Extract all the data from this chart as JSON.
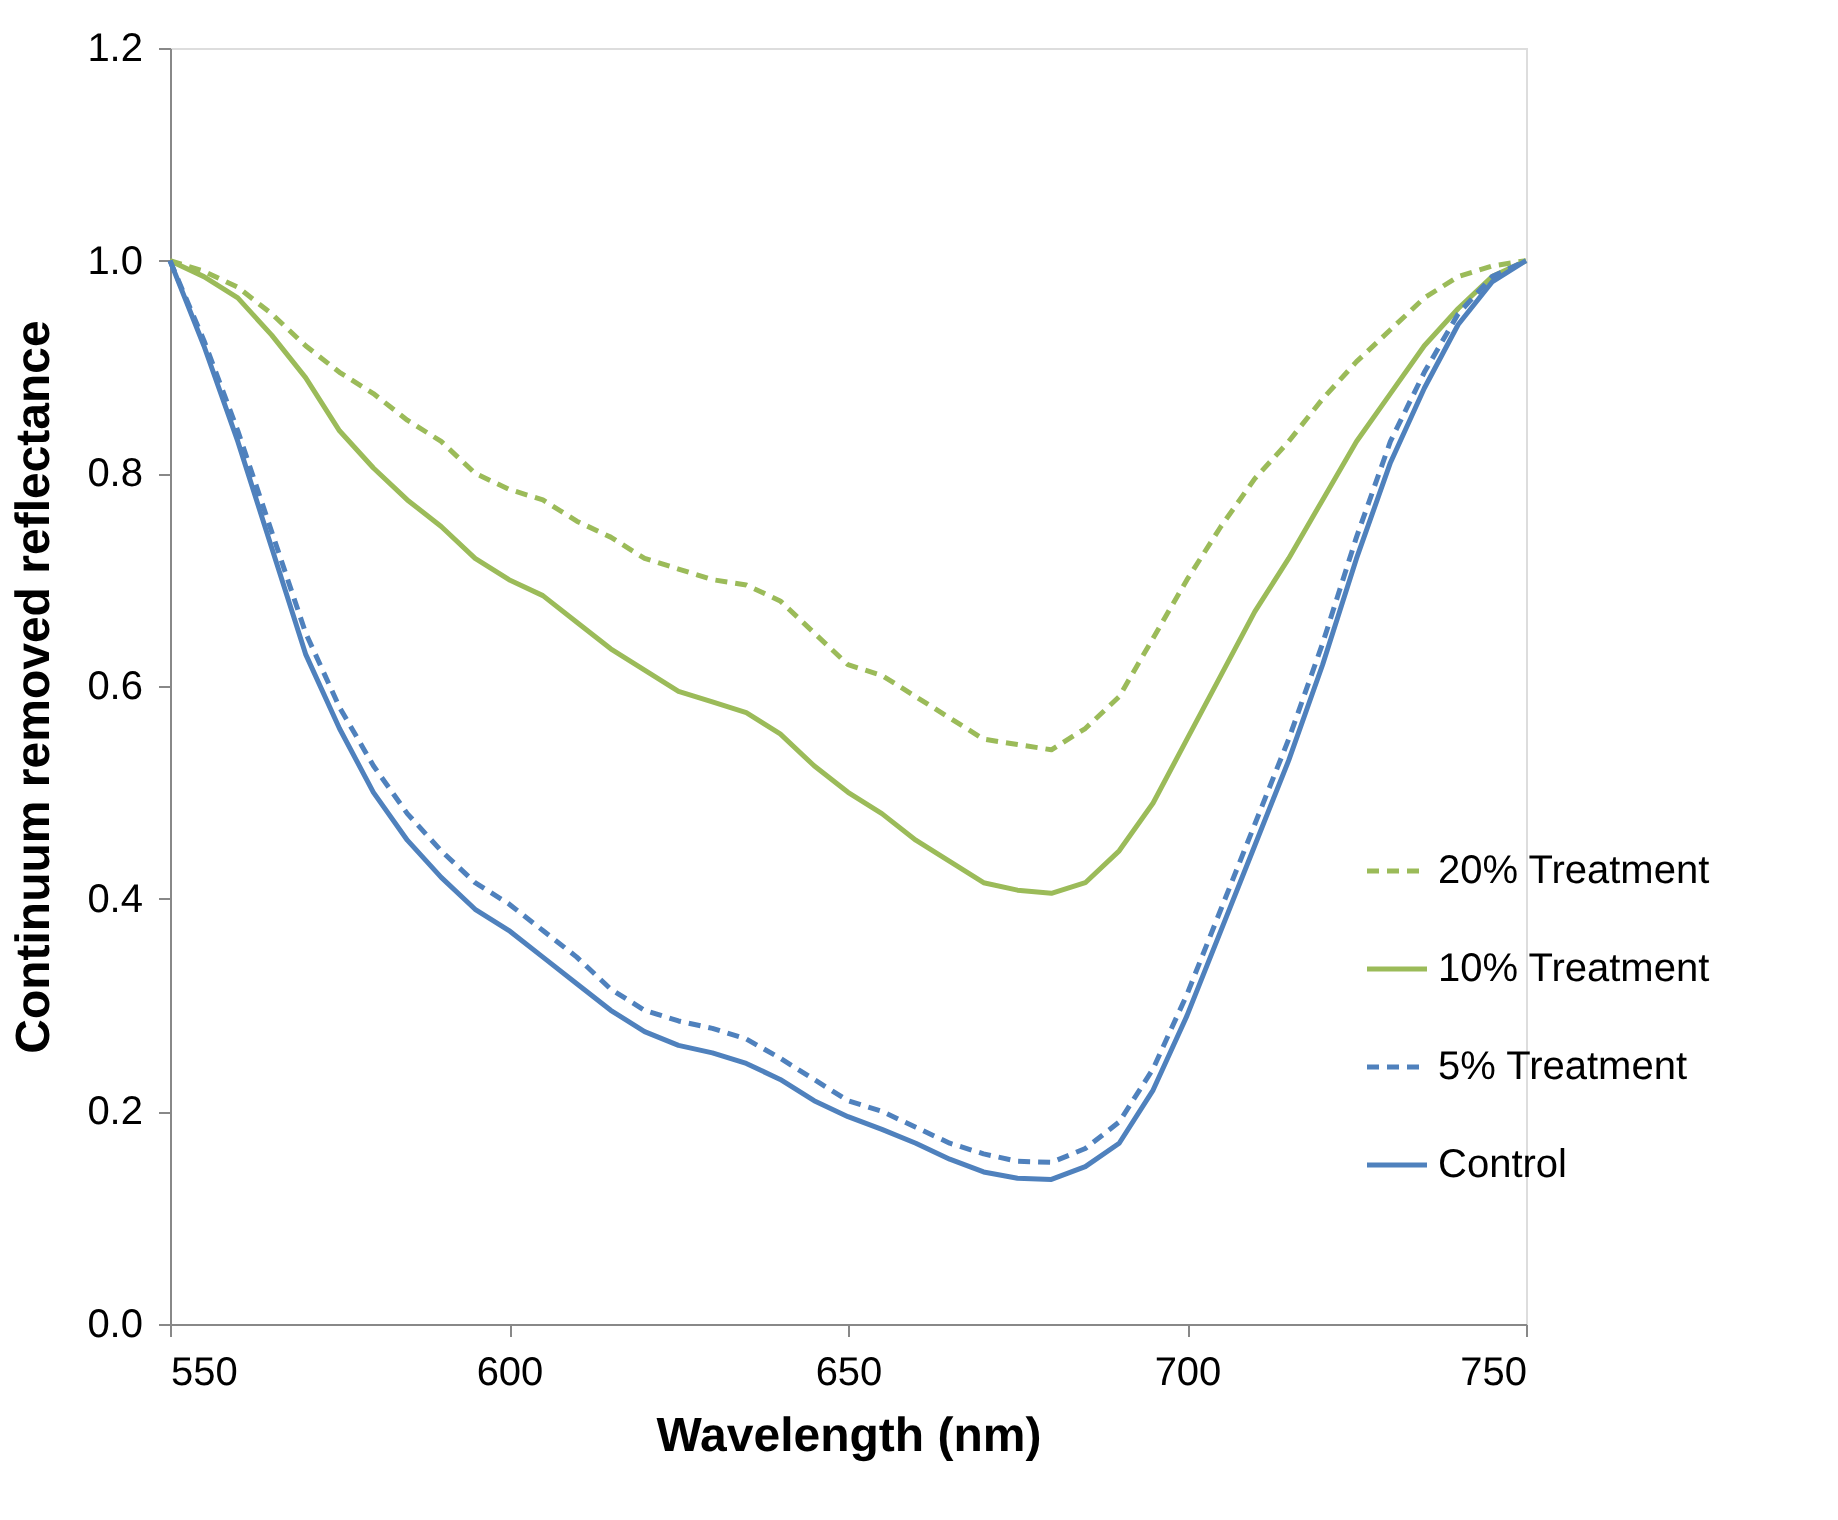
{
  "chart_data": {
    "type": "line",
    "xlabel": "Wavelength (nm)",
    "ylabel": "Continuum removed reflectance",
    "x": [
      550,
      555,
      560,
      565,
      570,
      575,
      580,
      585,
      590,
      595,
      600,
      605,
      610,
      615,
      620,
      625,
      630,
      635,
      640,
      645,
      650,
      655,
      660,
      665,
      670,
      675,
      680,
      685,
      690,
      695,
      700,
      705,
      710,
      715,
      720,
      725,
      730,
      735,
      740,
      745,
      750
    ],
    "series": [
      {
        "name": "20% Treatment",
        "color": "#9bbb59",
        "line_style": "dashed",
        "values": [
          1.0,
          0.99,
          0.975,
          0.95,
          0.92,
          0.895,
          0.875,
          0.85,
          0.83,
          0.8,
          0.785,
          0.775,
          0.755,
          0.74,
          0.72,
          0.71,
          0.7,
          0.695,
          0.68,
          0.65,
          0.62,
          0.61,
          0.59,
          0.57,
          0.55,
          0.545,
          0.54,
          0.56,
          0.59,
          0.645,
          0.7,
          0.75,
          0.795,
          0.83,
          0.87,
          0.905,
          0.935,
          0.965,
          0.985,
          0.995,
          1.0
        ]
      },
      {
        "name": "10% Treatment",
        "color": "#9bbb59",
        "line_style": "solid",
        "values": [
          1.0,
          0.985,
          0.965,
          0.93,
          0.89,
          0.84,
          0.805,
          0.775,
          0.75,
          0.72,
          0.7,
          0.685,
          0.66,
          0.635,
          0.615,
          0.595,
          0.585,
          0.575,
          0.555,
          0.525,
          0.5,
          0.48,
          0.455,
          0.435,
          0.415,
          0.408,
          0.405,
          0.415,
          0.445,
          0.49,
          0.55,
          0.61,
          0.67,
          0.72,
          0.775,
          0.83,
          0.875,
          0.92,
          0.955,
          0.985,
          1.0
        ]
      },
      {
        "name": "5% Treatment",
        "color": "#4f81bd",
        "line_style": "dashed",
        "values": [
          1.0,
          0.925,
          0.84,
          0.745,
          0.65,
          0.58,
          0.525,
          0.48,
          0.445,
          0.415,
          0.395,
          0.37,
          0.345,
          0.315,
          0.295,
          0.285,
          0.278,
          0.268,
          0.25,
          0.23,
          0.21,
          0.2,
          0.185,
          0.17,
          0.16,
          0.153,
          0.152,
          0.165,
          0.19,
          0.24,
          0.31,
          0.39,
          0.47,
          0.55,
          0.64,
          0.74,
          0.83,
          0.895,
          0.95,
          0.985,
          1.0
        ]
      },
      {
        "name": "Control",
        "color": "#4f81bd",
        "line_style": "solid",
        "values": [
          1.0,
          0.92,
          0.83,
          0.73,
          0.63,
          0.56,
          0.5,
          0.455,
          0.42,
          0.39,
          0.37,
          0.345,
          0.32,
          0.295,
          0.275,
          0.262,
          0.255,
          0.245,
          0.23,
          0.21,
          0.195,
          0.183,
          0.17,
          0.155,
          0.143,
          0.137,
          0.136,
          0.148,
          0.17,
          0.22,
          0.29,
          0.37,
          0.45,
          0.53,
          0.62,
          0.72,
          0.81,
          0.88,
          0.94,
          0.98,
          1.0
        ]
      }
    ],
    "xlim": [
      550,
      750
    ],
    "xticks": [
      550,
      600,
      650,
      700,
      750
    ],
    "ylim": [
      0,
      1.2
    ],
    "yticks": [
      {
        "value": 0,
        "label": "0.0"
      },
      {
        "value": 0.2,
        "label": "0.2"
      },
      {
        "value": 0.4,
        "label": "0.4"
      },
      {
        "value": 0.6,
        "label": "0.6"
      },
      {
        "value": 0.8,
        "label": "0.8"
      },
      {
        "value": 1.0,
        "label": "1.0"
      },
      {
        "value": 1.2,
        "label": "1.2"
      }
    ],
    "grid": false,
    "legend": "right",
    "marker": "none"
  }
}
